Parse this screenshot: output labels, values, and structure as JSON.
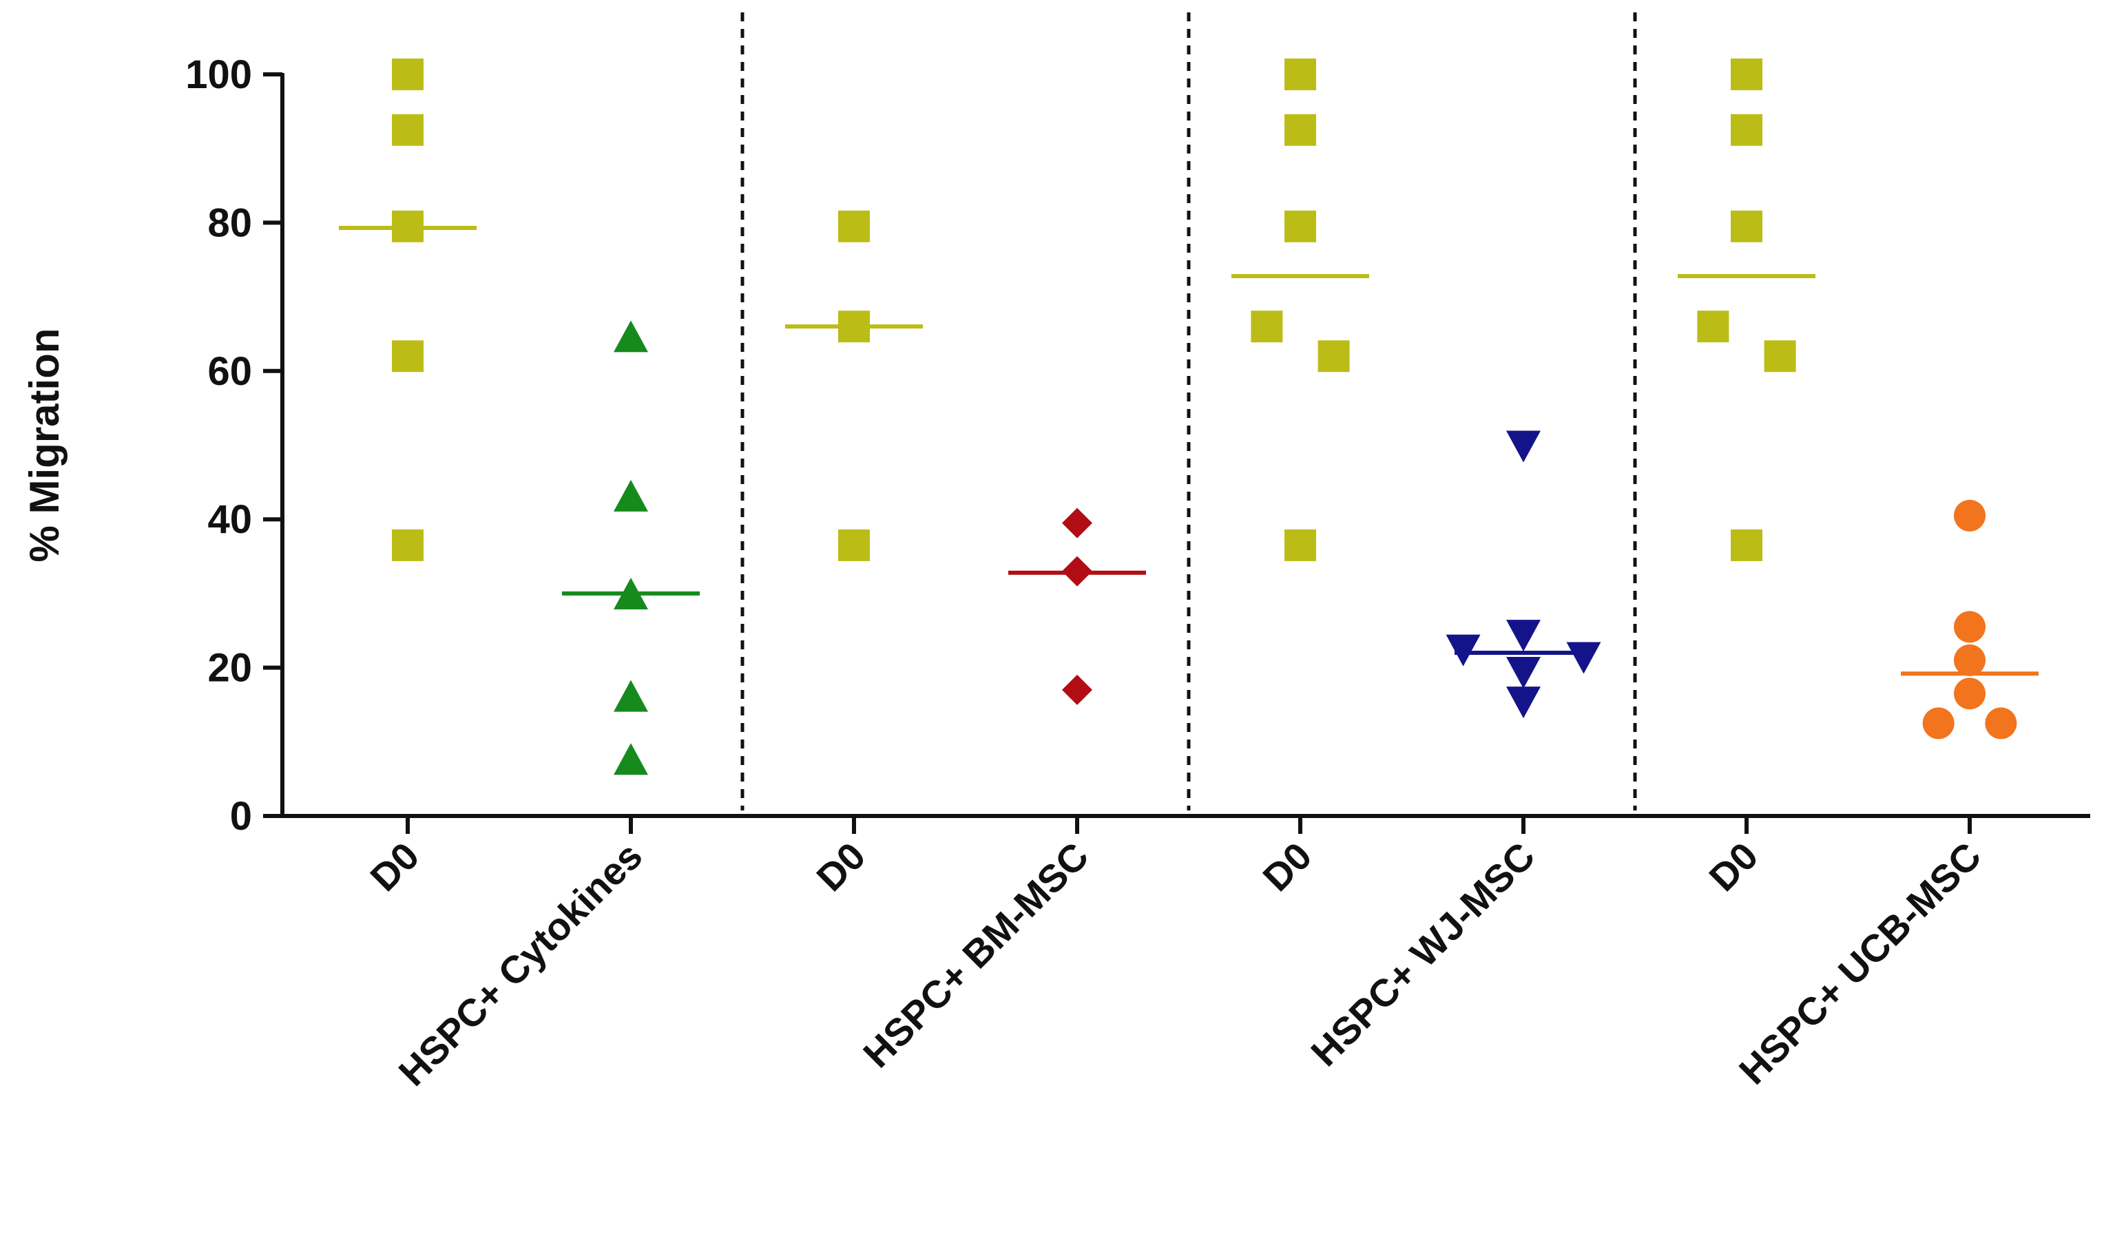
{
  "chart_data": {
    "type": "scatter",
    "title": "",
    "xlabel": "",
    "ylabel": "% Migration",
    "ylim": [
      0,
      100
    ],
    "yticks": [
      0,
      20,
      40,
      60,
      80,
      100
    ],
    "grid": false,
    "categories": [
      "D0",
      "HSPC+ Cytokines",
      "D0",
      "HSPC+ BM-MSC",
      "D0",
      "HSPC+ WJ-MSC",
      "D0",
      "HSPC+ UCB-MSC"
    ],
    "group_separators_after": [
      2,
      4,
      6
    ],
    "series": [
      {
        "name": "D0",
        "category": 1,
        "marker": "square",
        "color": "#bcbc17",
        "values": [
          100,
          92.5,
          79.5,
          62,
          36.5
        ],
        "offsets": [
          0,
          0,
          0,
          0,
          0
        ],
        "median": 79.3
      },
      {
        "name": "HSPC+ Cytokines",
        "category": 2,
        "marker": "triangle-up",
        "color": "#168a1c",
        "values": [
          64.5,
          43,
          29.8,
          16,
          7.5
        ],
        "offsets": [
          0,
          0,
          0,
          0,
          0
        ],
        "median": 30
      },
      {
        "name": "D0",
        "category": 3,
        "marker": "square",
        "color": "#bcbc17",
        "values": [
          79.5,
          66,
          36.5
        ],
        "offsets": [
          0,
          0,
          0
        ],
        "median": 66
      },
      {
        "name": "HSPC+ BM-MSC",
        "category": 4,
        "marker": "diamond",
        "color": "#b20d14",
        "values": [
          39.5,
          33,
          17
        ],
        "offsets": [
          0,
          0,
          0
        ],
        "median": 32.8
      },
      {
        "name": "D0",
        "category": 5,
        "marker": "square",
        "color": "#bcbc17",
        "values": [
          100,
          92.5,
          79.5,
          66,
          62,
          36.5
        ],
        "offsets": [
          0,
          0,
          0,
          -0.15,
          0.15,
          0
        ],
        "median": 72.8
      },
      {
        "name": "HSPC+ WJ-MSC",
        "category": 6,
        "marker": "triangle-down",
        "color": "#14148a",
        "values": [
          50,
          24.5,
          22.5,
          21.5,
          19.5,
          15.5
        ],
        "offsets": [
          0,
          0,
          -0.27,
          0.27,
          0,
          0
        ],
        "median": 22
      },
      {
        "name": "D0",
        "category": 7,
        "marker": "square",
        "color": "#bcbc17",
        "values": [
          100,
          92.5,
          79.5,
          66,
          62,
          36.5
        ],
        "offsets": [
          0,
          0,
          0,
          -0.15,
          0.15,
          0
        ],
        "median": 72.8
      },
      {
        "name": "HSPC+ UCB-MSC",
        "category": 8,
        "marker": "circle",
        "color": "#f2741d",
        "values": [
          40.5,
          25.5,
          21,
          16.5,
          12.5,
          12.5
        ],
        "offsets": [
          0,
          0,
          0,
          0,
          -0.14,
          0.14
        ],
        "median": 19.2
      }
    ]
  }
}
